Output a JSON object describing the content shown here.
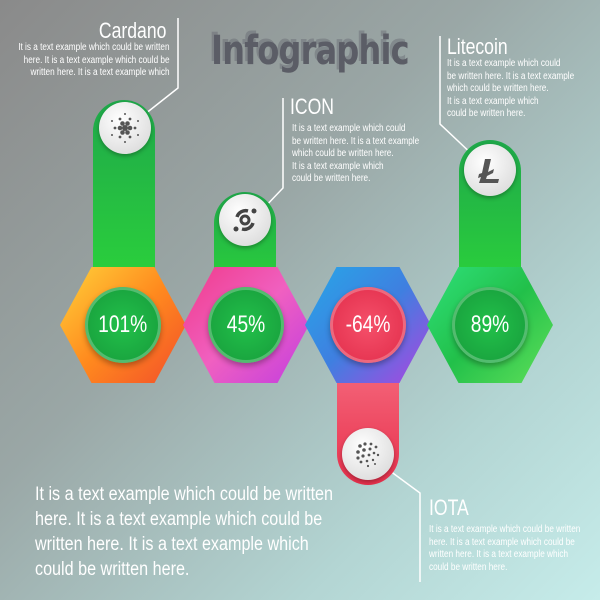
{
  "title": "Infographic",
  "items": [
    {
      "name": "Cardano",
      "value": "101%",
      "text": [
        "It is a text example which could be written",
        "here. It is a text example which could be",
        "written here. It is a text example which"
      ],
      "icon": "cardano-icon",
      "color": "#22b14c"
    },
    {
      "name": "ICON",
      "value": "45%",
      "text": [
        "It is a text example which could",
        "be written here. It is a text example",
        "which could be written here.",
        "It is a text example which",
        "could be written here."
      ],
      "icon": "icon-coin-icon",
      "color": "#22b14c"
    },
    {
      "name": "IOTA",
      "value": "-64%",
      "text": [
        "It is a text example which could be written",
        "here. It is a text example which could be",
        "written here. It is a text example which",
        "could be written here."
      ],
      "icon": "iota-icon",
      "color": "#f0405a"
    },
    {
      "name": "Litecoin",
      "value": "89%",
      "text": [
        "It is a text example which could",
        "be written here. It is a text example",
        "which could be written here.",
        "It is a text example which",
        "could be written here."
      ],
      "icon": "litecoin-icon",
      "color": "#22b14c"
    }
  ],
  "footer": [
    "It is a text example which could be written",
    "here. It is a text example which could be",
    "written here. It is a text example which",
    "could be written here."
  ]
}
